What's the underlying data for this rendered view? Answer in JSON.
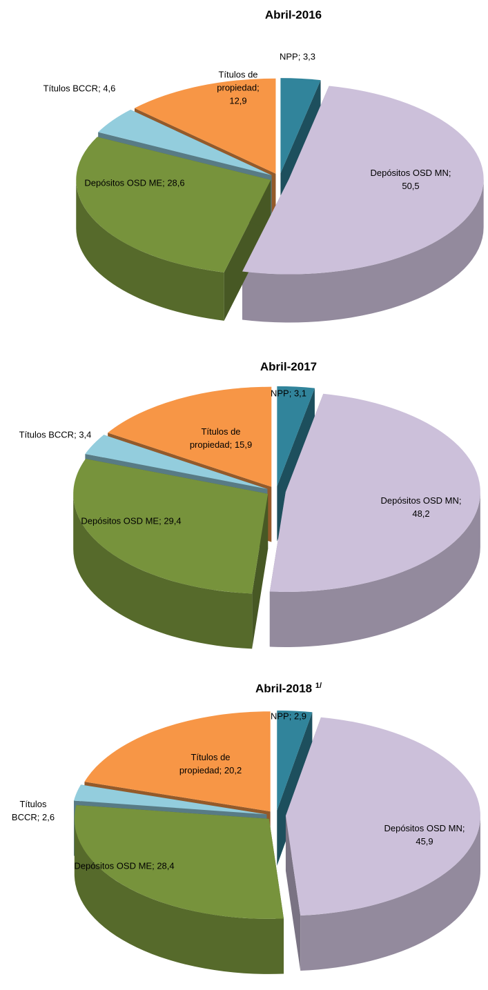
{
  "chart_data": [
    {
      "type": "pie",
      "title": "Abril-2016",
      "label_separator": "; ",
      "categories": [
        "NPP",
        "Depósitos OSD MN",
        "Depósitos OSD ME",
        "Títulos BCCR",
        "Títulos de propiedad"
      ],
      "values": [
        3.3,
        50.5,
        28.6,
        4.6,
        12.9
      ],
      "value_labels": [
        "3,3",
        "50,5",
        "28,6",
        "4,6",
        "12,9"
      ],
      "colors": [
        "#31849b",
        "#ccc0da",
        "#77933c",
        "#93cddd",
        "#f79646"
      ]
    },
    {
      "type": "pie",
      "title": "Abril-2017",
      "label_separator": "; ",
      "categories": [
        "NPP",
        "Depósitos OSD MN",
        "Depósitos OSD ME",
        "Títulos BCCR",
        "Títulos de propiedad"
      ],
      "values": [
        3.1,
        48.2,
        29.4,
        3.4,
        15.9
      ],
      "value_labels": [
        "3,1",
        "48,2",
        "29,4",
        "3,4",
        "15,9"
      ],
      "colors": [
        "#31849b",
        "#ccc0da",
        "#77933c",
        "#93cddd",
        "#f79646"
      ]
    },
    {
      "type": "pie",
      "title": "Abril-2018",
      "title_note": "1/",
      "label_separator": "; ",
      "categories": [
        "NPP",
        "Depósitos OSD MN",
        "Depósitos OSD ME",
        "Títulos BCCR",
        "Títulos de propiedad"
      ],
      "values": [
        2.9,
        45.9,
        28.4,
        2.6,
        20.2
      ],
      "value_labels": [
        "2,9",
        "45,9",
        "28,4",
        "2,6",
        "20,2"
      ],
      "colors": [
        "#31849b",
        "#ccc0da",
        "#77933c",
        "#93cddd",
        "#f79646"
      ]
    }
  ]
}
